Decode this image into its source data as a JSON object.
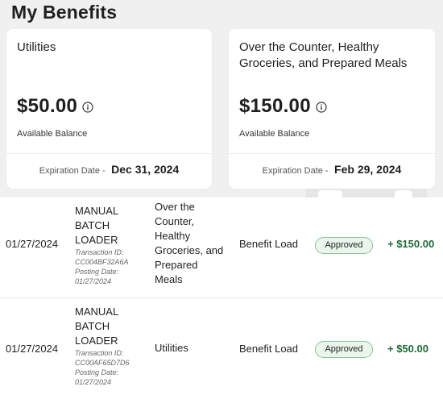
{
  "page": {
    "title": "My Benefits"
  },
  "benefits": [
    {
      "title": "Utilities",
      "amount": "$50.00",
      "balance_label": "Available Balance",
      "expiration_label": "Expiration Date -",
      "expiration_date": "Dec 31, 2024"
    },
    {
      "title": "Over the Counter, Healthy Groceries, and Prepared Meals",
      "amount": "$150.00",
      "balance_label": "Available Balance",
      "expiration_label": "Expiration Date -",
      "expiration_date": "Feb 29, 2024"
    }
  ],
  "transactions": [
    {
      "date": "01/27/2024",
      "source": "MANUAL BATCH LOADER",
      "transaction_id": "Transaction ID: CC004BF32A6A",
      "posting_date": "Posting Date: 01/27/2024",
      "category": "Over the Counter, Healthy Groceries, and Prepared Meals",
      "type": "Benefit Load",
      "status": "Approved",
      "amount": "+ $150.00"
    },
    {
      "date": "01/27/2024",
      "source": "MANUAL BATCH LOADER",
      "transaction_id": "Transaction ID: CC00AF65D7D6",
      "posting_date": "Posting Date: 01/27/2024",
      "category": "Utilities",
      "type": "Benefit Load",
      "status": "Approved",
      "amount": "+ $50.00"
    }
  ],
  "icons": {
    "info": "info-icon"
  },
  "colors": {
    "page_background": "#f0f0f0",
    "card_background": "#ffffff",
    "approved_badge_border": "#8cc49c",
    "approved_badge_fill": "#eaf6ec",
    "credit_amount": "#1e6b35"
  }
}
